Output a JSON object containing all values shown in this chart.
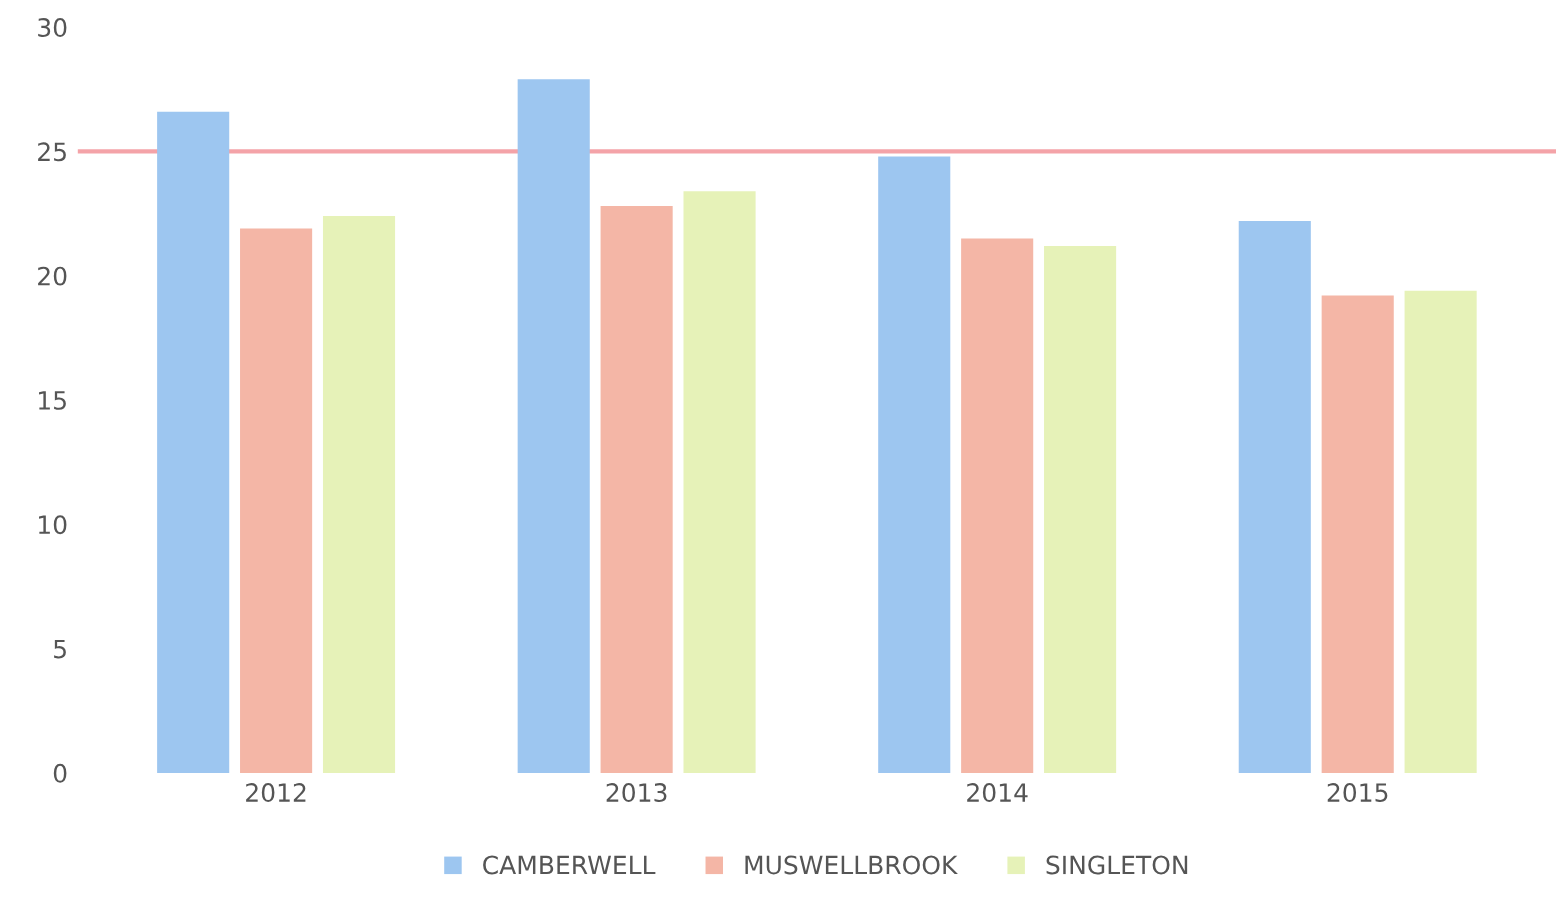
{
  "chart_data": {
    "type": "bar",
    "categories": [
      "2012",
      "2013",
      "2014",
      "2015"
    ],
    "series": [
      {
        "name": "CAMBERWELL",
        "color": "#9dc6f0",
        "values": [
          26.6,
          27.9,
          24.8,
          22.2
        ]
      },
      {
        "name": "MUSWELLBROOK",
        "color": "#f4b6a6",
        "values": [
          21.9,
          22.8,
          21.5,
          19.2
        ]
      },
      {
        "name": "SINGLETON",
        "color": "#e6f2b8",
        "values": [
          22.4,
          23.4,
          21.2,
          19.4
        ]
      }
    ],
    "ylim": [
      0,
      30
    ],
    "yticks": [
      0,
      5,
      10,
      15,
      20,
      25,
      30
    ],
    "grid": false,
    "legend": "bottom",
    "ref_lines": [
      {
        "axis": "y",
        "value": 25,
        "color": "#f4a3a8"
      }
    ]
  }
}
